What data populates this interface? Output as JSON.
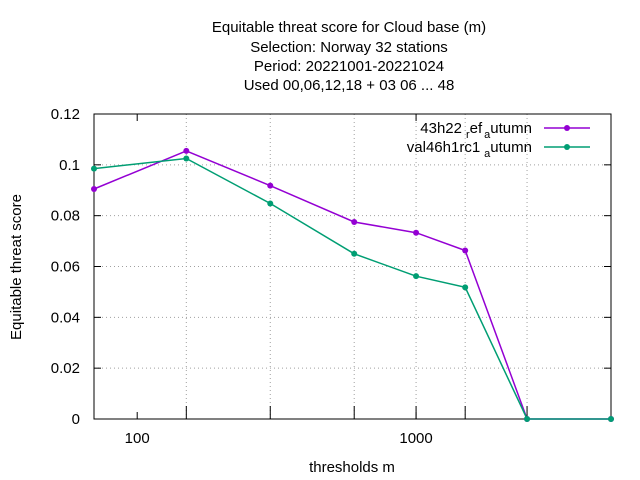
{
  "chart_data": {
    "type": "line",
    "title_lines": [
      "Equitable threat score  for Cloud base (m)",
      "Selection: Norway     32 stations",
      "Period: 20221001-20221024",
      "Used  00,06,12,18  + 03 06 ... 48"
    ],
    "xlabel": "thresholds m",
    "ylabel": "Equitable threat score",
    "x_scale": "log",
    "xlim": [
      70,
      5000
    ],
    "ylim": [
      0,
      0.12
    ],
    "y_ticks": [
      "0",
      "0.02",
      "0.04",
      "0.06",
      "0.08",
      "0.1",
      "0.12"
    ],
    "x_tick_labels": [
      {
        "value": 100,
        "label": "100"
      },
      {
        "value": 1000,
        "label": "1000"
      }
    ],
    "x_major_ticks": [
      100,
      1000
    ],
    "x_data_ticks": [
      150,
      300,
      600,
      1000,
      1500,
      2500,
      5000
    ],
    "grid": true,
    "legend_position": "top-right",
    "x": [
      70,
      150,
      300,
      600,
      1000,
      1500,
      2500,
      5000
    ],
    "series": [
      {
        "name": "43h22",
        "name_sub1": "r",
        "name_mid": "ef",
        "name_sub2": "a",
        "name_tail": "utumn",
        "color": "#9400d3",
        "values": [
          0.0905,
          0.1055,
          0.0918,
          0.0775,
          0.0733,
          0.0663,
          0.0,
          0.0
        ]
      },
      {
        "name": "val46h1rc1",
        "name_sub1": "a",
        "name_tail": "utumn",
        "color": "#009e73",
        "values": [
          0.0985,
          0.1025,
          0.0848,
          0.065,
          0.0562,
          0.0518,
          0.0,
          0.0
        ]
      }
    ]
  }
}
